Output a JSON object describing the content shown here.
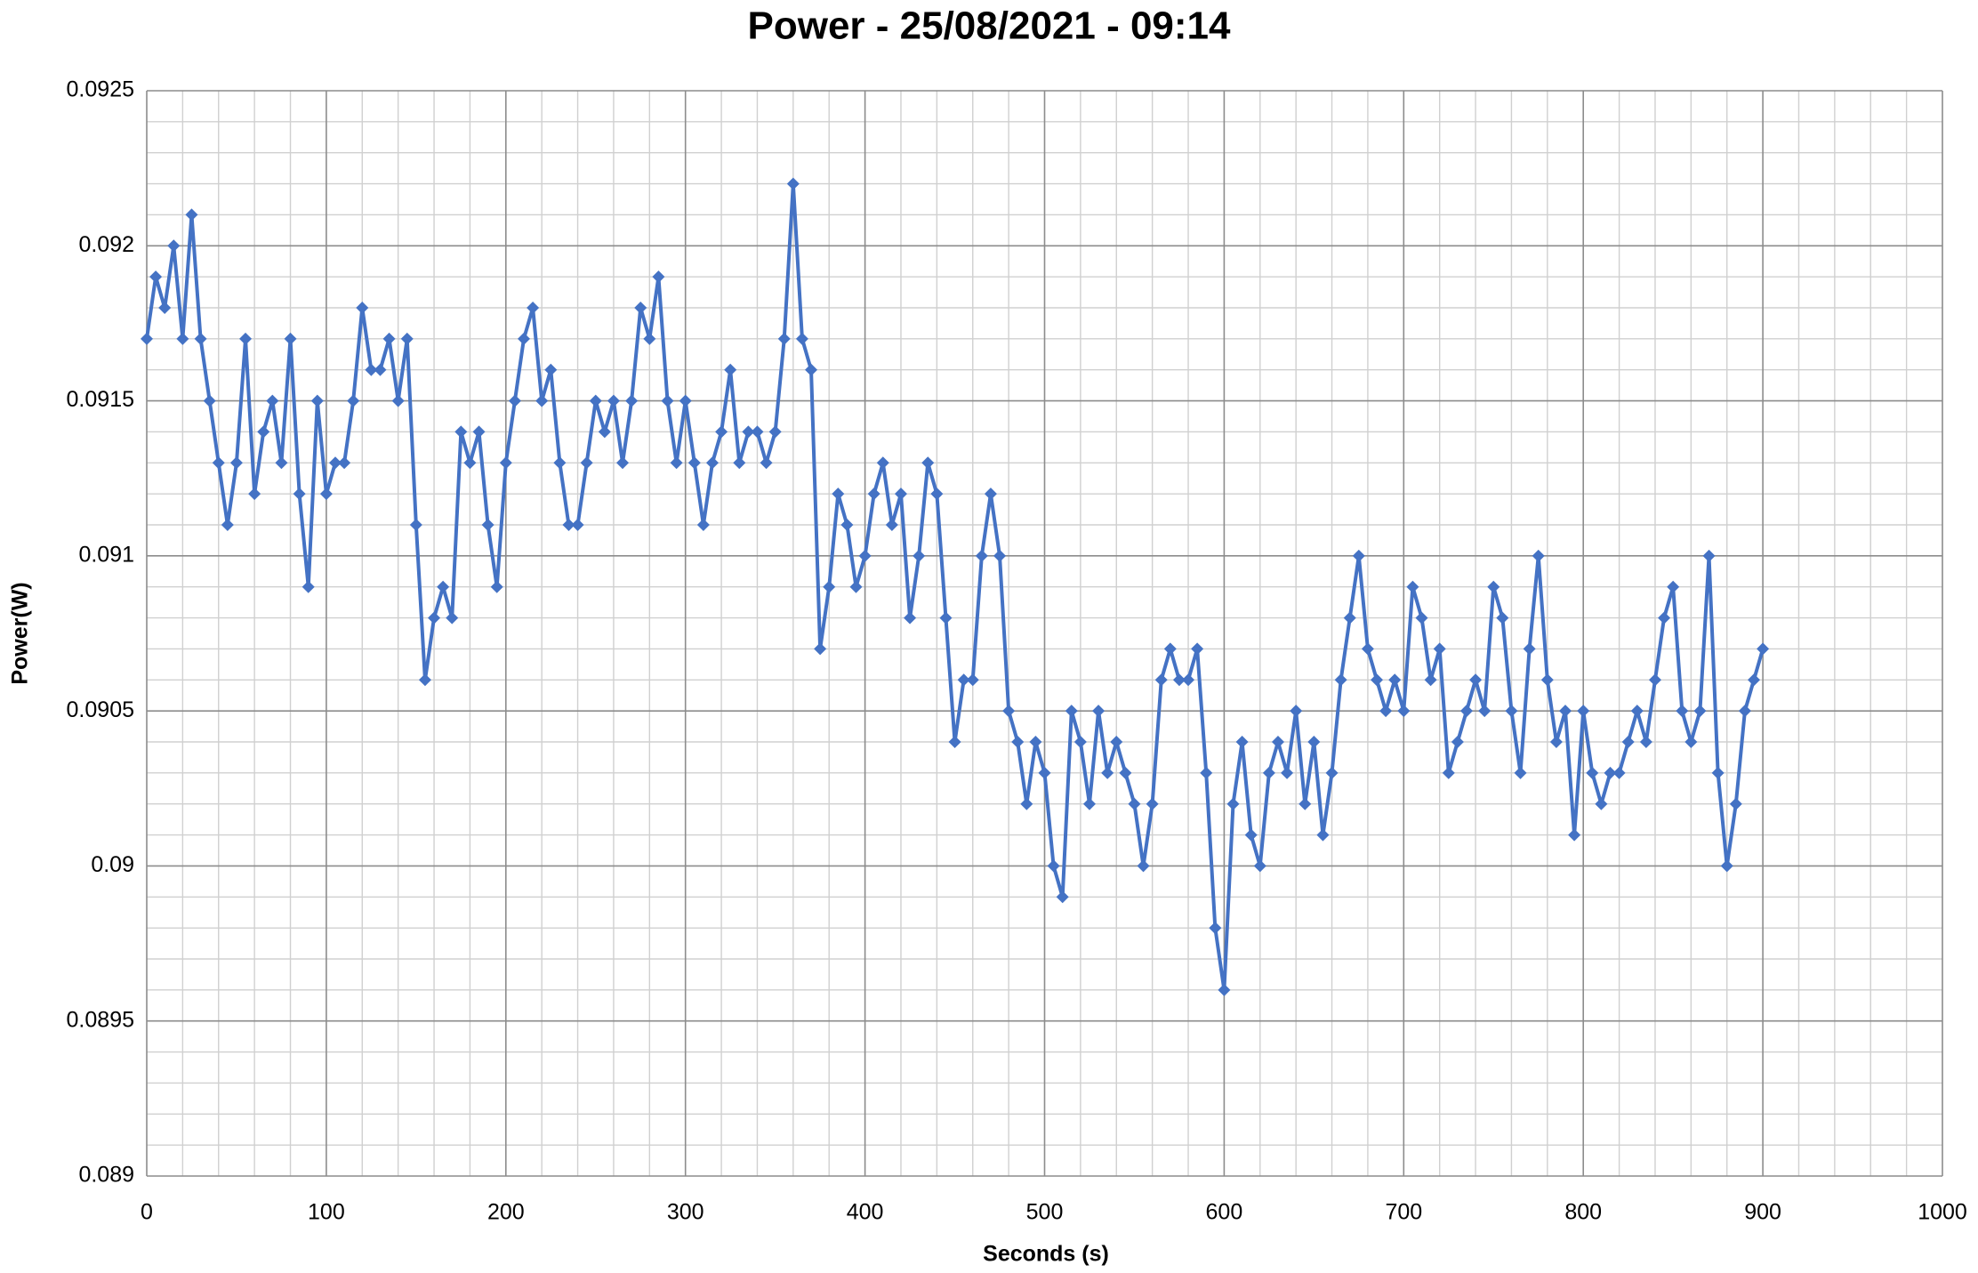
{
  "chart_data": {
    "type": "line",
    "title": "Power - 25/08/2021 - 09:14",
    "x_label": "Seconds (s)",
    "y_label": "Power(W)",
    "color": "#4472c4",
    "grid": true,
    "minor_grid": true,
    "xlim": [
      0,
      1000
    ],
    "xticks": [
      0,
      100,
      200,
      300,
      400,
      500,
      600,
      700,
      800,
      900,
      1000
    ],
    "ylim": [
      0.089,
      0.0925
    ],
    "yticks": [
      0.089,
      0.0895,
      0.09,
      0.0905,
      0.091,
      0.0915,
      0.092,
      0.0925
    ],
    "x": [
      0,
      5,
      10,
      15,
      20,
      25,
      30,
      35,
      40,
      45,
      50,
      55,
      60,
      65,
      70,
      75,
      80,
      85,
      90,
      95,
      100,
      105,
      110,
      115,
      120,
      125,
      130,
      135,
      140,
      145,
      150,
      155,
      160,
      165,
      170,
      175,
      180,
      185,
      190,
      195,
      200,
      205,
      210,
      215,
      220,
      225,
      230,
      235,
      240,
      245,
      250,
      255,
      260,
      265,
      270,
      275,
      280,
      285,
      290,
      295,
      300,
      305,
      310,
      315,
      320,
      325,
      330,
      335,
      340,
      345,
      350,
      355,
      360,
      365,
      370,
      375,
      380,
      385,
      390,
      395,
      400,
      405,
      410,
      415,
      420,
      425,
      430,
      435,
      440,
      445,
      450,
      455,
      460,
      465,
      470,
      475,
      480,
      485,
      490,
      495,
      500,
      505,
      510,
      515,
      520,
      525,
      530,
      535,
      540,
      545,
      550,
      555,
      560,
      565,
      570,
      575,
      580,
      585,
      590,
      595,
      600,
      605,
      610,
      615,
      620,
      625,
      630,
      635,
      640,
      645,
      650,
      655,
      660,
      665,
      670,
      675,
      680,
      685,
      690,
      695,
      700,
      705,
      710,
      715,
      720,
      725,
      730,
      735,
      740,
      745,
      750,
      755,
      760,
      765,
      770,
      775,
      780,
      785,
      790,
      795,
      800,
      805,
      810,
      815,
      820,
      825,
      830,
      835,
      840,
      845,
      850,
      855,
      860,
      865,
      870,
      875,
      880,
      885,
      890,
      895,
      900
    ],
    "values": [
      0.0917,
      0.0919,
      0.0918,
      0.092,
      0.0917,
      0.0921,
      0.0917,
      0.0915,
      0.0913,
      0.0911,
      0.0913,
      0.0917,
      0.0912,
      0.0914,
      0.0915,
      0.0913,
      0.0917,
      0.0912,
      0.0909,
      0.0915,
      0.0912,
      0.0913,
      0.0913,
      0.0915,
      0.0918,
      0.0916,
      0.0916,
      0.0917,
      0.0915,
      0.0917,
      0.0911,
      0.0906,
      0.0908,
      0.0909,
      0.0908,
      0.0914,
      0.0913,
      0.0914,
      0.0911,
      0.0909,
      0.0913,
      0.0915,
      0.0917,
      0.0918,
      0.0915,
      0.0916,
      0.0913,
      0.0911,
      0.0911,
      0.0913,
      0.0915,
      0.0914,
      0.0915,
      0.0913,
      0.0915,
      0.0918,
      0.0917,
      0.0919,
      0.0915,
      0.0913,
      0.0915,
      0.0913,
      0.0911,
      0.0913,
      0.0914,
      0.0916,
      0.0913,
      0.0914,
      0.0914,
      0.0913,
      0.0914,
      0.0917,
      0.0922,
      0.0917,
      0.0916,
      0.0907,
      0.0909,
      0.0912,
      0.0911,
      0.0909,
      0.091,
      0.0912,
      0.0913,
      0.0911,
      0.0912,
      0.0908,
      0.091,
      0.0913,
      0.0912,
      0.0908,
      0.0904,
      0.0906,
      0.0906,
      0.091,
      0.0912,
      0.091,
      0.0905,
      0.0904,
      0.0902,
      0.0904,
      0.0903,
      0.09,
      0.0899,
      0.0905,
      0.0904,
      0.0902,
      0.0905,
      0.0903,
      0.0904,
      0.0903,
      0.0902,
      0.09,
      0.0902,
      0.0906,
      0.0907,
      0.0906,
      0.0906,
      0.0907,
      0.0903,
      0.0898,
      0.0896,
      0.0902,
      0.0904,
      0.0901,
      0.09,
      0.0903,
      0.0904,
      0.0903,
      0.0905,
      0.0902,
      0.0904,
      0.0901,
      0.0903,
      0.0906,
      0.0908,
      0.091,
      0.0907,
      0.0906,
      0.0905,
      0.0906,
      0.0905,
      0.0909,
      0.0908,
      0.0906,
      0.0907,
      0.0903,
      0.0904,
      0.0905,
      0.0906,
      0.0905,
      0.0909,
      0.0908,
      0.0905,
      0.0903,
      0.0907,
      0.091,
      0.0906,
      0.0904,
      0.0905,
      0.0901,
      0.0905,
      0.0903,
      0.0902,
      0.0903,
      0.0903,
      0.0904,
      0.0905,
      0.0904,
      0.0906,
      0.0908,
      0.0909,
      0.0905,
      0.0904,
      0.0905,
      0.091,
      0.0903,
      0.09,
      0.0902,
      0.0905,
      0.0906,
      0.0907
    ]
  }
}
